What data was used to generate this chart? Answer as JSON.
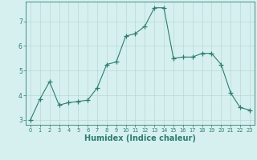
{
  "x": [
    0,
    1,
    2,
    3,
    4,
    5,
    6,
    7,
    8,
    9,
    10,
    11,
    12,
    13,
    14,
    15,
    16,
    17,
    18,
    19,
    20,
    21,
    22,
    23
  ],
  "y": [
    3.0,
    3.85,
    4.55,
    3.6,
    3.7,
    3.75,
    3.8,
    4.3,
    5.25,
    5.35,
    6.4,
    6.5,
    6.8,
    7.55,
    7.55,
    5.5,
    5.55,
    5.55,
    5.7,
    5.7,
    5.25,
    4.1,
    3.5,
    3.4
  ],
  "line_color": "#2e7d6e",
  "marker": "+",
  "marker_size": 4,
  "marker_color": "#2e7d6e",
  "bg_color": "#d6f0ef",
  "grid_color": "#b8d8d5",
  "axis_color": "#2e7d6e",
  "tick_color": "#2e7d6e",
  "xlabel": "Humidex (Indice chaleur)",
  "xlabel_fontsize": 7,
  "xlabel_color": "#2e7d6e",
  "xlim": [
    -0.5,
    23.5
  ],
  "ylim": [
    2.8,
    7.8
  ],
  "yticks": [
    3,
    4,
    5,
    6,
    7
  ],
  "xticks": [
    0,
    1,
    2,
    3,
    4,
    5,
    6,
    7,
    8,
    9,
    10,
    11,
    12,
    13,
    14,
    15,
    16,
    17,
    18,
    19,
    20,
    21,
    22,
    23
  ]
}
